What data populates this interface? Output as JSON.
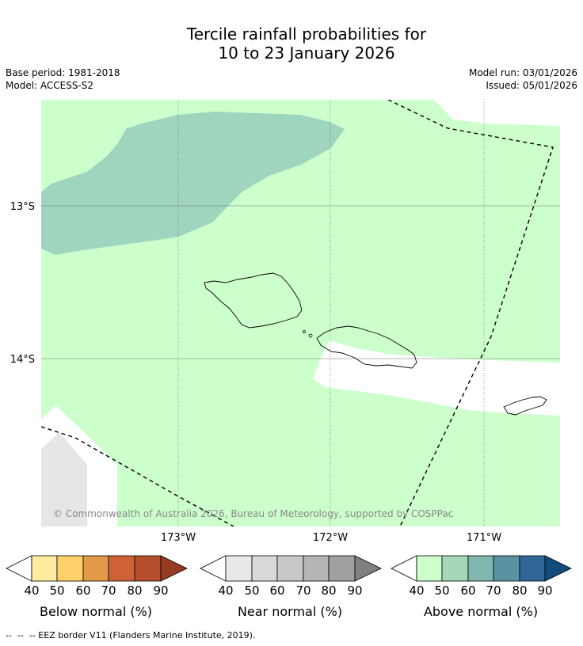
{
  "title": {
    "line1": "Tercile rainfall probabilities for",
    "line2": "10 to 23 January 2026"
  },
  "meta": {
    "base_period": "Base period: 1981-2018",
    "model": "Model: ACCESS-S2",
    "model_run": "Model run: 03/01/2026",
    "issued": "Issued: 05/01/2026"
  },
  "map": {
    "lat_labels": [
      "13°S",
      "14°S"
    ],
    "lon_labels": [
      "173°W",
      "172°W",
      "171°W"
    ],
    "copyright": "© Commonwealth of Australia 2026, Bureau of Meteorology, supported by COSPPac",
    "colors": {
      "above_40": "#ccffcc",
      "above_50": "#9fd4be",
      "near_40": "#e8e8e8",
      "ocean_none": "#ffffff",
      "gridline": "#666666"
    }
  },
  "legends": [
    {
      "label": "Below normal (%)",
      "ticks": [
        "40",
        "50",
        "60",
        "70",
        "80",
        "90"
      ],
      "colors": [
        "#ffeca0",
        "#fdd06a",
        "#e29a48",
        "#cf6235",
        "#b54e2a",
        "#963b22"
      ]
    },
    {
      "label": "Near normal (%)",
      "ticks": [
        "40",
        "50",
        "60",
        "70",
        "80",
        "90"
      ],
      "colors": [
        "#e8e8e8",
        "#d9d9d9",
        "#c8c8c8",
        "#b5b5b5",
        "#a0a0a0",
        "#808080"
      ]
    },
    {
      "label": "Above normal (%)",
      "ticks": [
        "40",
        "50",
        "60",
        "70",
        "80",
        "90"
      ],
      "colors": [
        "#ccffcc",
        "#a5d8b8",
        "#80b7b0",
        "#5a92a2",
        "#306698",
        "#114b7e"
      ]
    }
  ],
  "footnote": "--  --  -- EEZ border V11 (Flanders Marine Institute, 2019)."
}
